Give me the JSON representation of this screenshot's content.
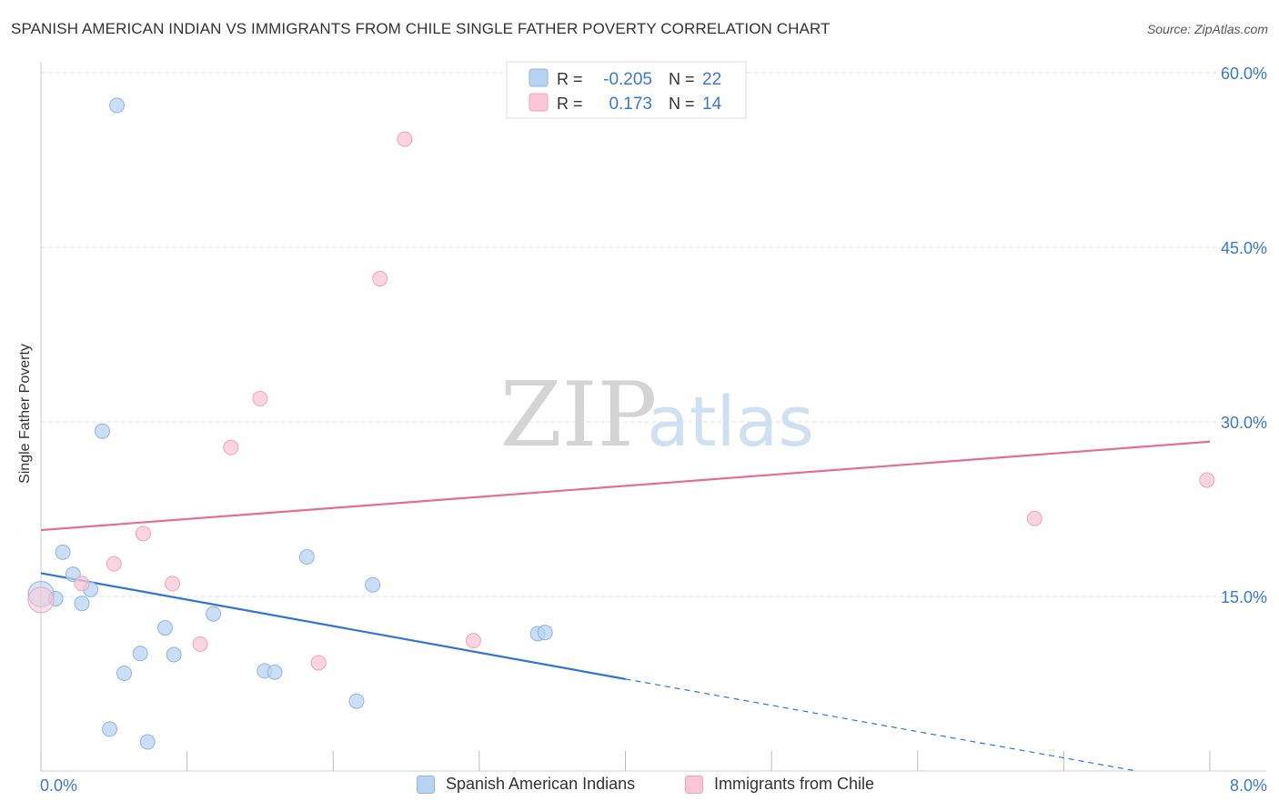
{
  "title": "SPANISH AMERICAN INDIAN VS IMMIGRANTS FROM CHILE SINGLE FATHER POVERTY CORRELATION CHART",
  "source": "Source: ZipAtlas.com",
  "watermark": {
    "zip": "ZIP",
    "atlas": "atlas"
  },
  "colors": {
    "blue_fill": "#b8d3f2",
    "blue_stroke": "#8fb5e3",
    "blue_line": "#2f74d6",
    "pink_fill": "#f8c6d6",
    "pink_stroke": "#eea3bb",
    "pink_line": "#e26e96",
    "value_text": "#3a78d4",
    "grid": "#dddddd"
  },
  "legend_top": {
    "rows": [
      {
        "r_label": "R =",
        "r_value": "-0.205",
        "n_label": "N =",
        "n_value": "22",
        "series": "blue"
      },
      {
        "r_label": "R =",
        "r_value": "0.173",
        "n_label": "N =",
        "n_value": "14",
        "series": "pink"
      }
    ]
  },
  "chart_data": {
    "type": "scatter",
    "title": "SPANISH AMERICAN INDIAN VS IMMIGRANTS FROM CHILE SINGLE FATHER POVERTY CORRELATION CHART",
    "xlabel": "",
    "ylabel": "Single Father Poverty",
    "xlim": [
      0,
      8
    ],
    "ylim": [
      0,
      60
    ],
    "x_tick_labels": [
      "0.0%",
      "8.0%"
    ],
    "y_ticks": [
      15,
      30,
      45,
      60
    ],
    "y_tick_labels": [
      "15.0%",
      "30.0%",
      "45.0%",
      "60.0%"
    ],
    "legend": [
      "Spanish American Indians",
      "Immigrants from Chile"
    ],
    "series": [
      {
        "name": "Spanish American Indians",
        "color": "blue",
        "points": [
          [
            0.52,
            57.2
          ],
          [
            0.42,
            29.2
          ],
          [
            0.15,
            18.8
          ],
          [
            0.22,
            16.9
          ],
          [
            0.34,
            15.6
          ],
          [
            0.1,
            14.8
          ],
          [
            0.28,
            14.4
          ],
          [
            0.0,
            15.2
          ],
          [
            1.82,
            18.4
          ],
          [
            2.27,
            16.0
          ],
          [
            1.18,
            13.5
          ],
          [
            0.85,
            12.3
          ],
          [
            0.68,
            10.1
          ],
          [
            0.91,
            10.0
          ],
          [
            0.57,
            8.4
          ],
          [
            1.53,
            8.6
          ],
          [
            1.6,
            8.5
          ],
          [
            2.16,
            6.0
          ],
          [
            0.47,
            3.6
          ],
          [
            0.73,
            2.5
          ],
          [
            3.4,
            11.8
          ],
          [
            3.45,
            11.9
          ]
        ],
        "trend": {
          "x": [
            0,
            4.0
          ],
          "y": [
            17.0,
            7.9
          ]
        },
        "trend_dashed": {
          "x": [
            4.0,
            7.5
          ],
          "y": [
            7.9,
            0.0
          ]
        }
      },
      {
        "name": "Immigrants from Chile",
        "color": "pink",
        "points": [
          [
            2.49,
            54.3
          ],
          [
            2.32,
            42.3
          ],
          [
            1.5,
            32.0
          ],
          [
            1.3,
            27.8
          ],
          [
            0.7,
            20.4
          ],
          [
            0.5,
            17.8
          ],
          [
            0.28,
            16.1
          ],
          [
            0.9,
            16.1
          ],
          [
            0.0,
            14.7
          ],
          [
            1.09,
            10.9
          ],
          [
            1.9,
            9.3
          ],
          [
            2.96,
            11.2
          ],
          [
            6.8,
            21.7
          ],
          [
            7.98,
            25.0
          ]
        ],
        "trend": {
          "x": [
            0,
            8.0
          ],
          "y": [
            20.7,
            28.3
          ]
        }
      }
    ]
  }
}
